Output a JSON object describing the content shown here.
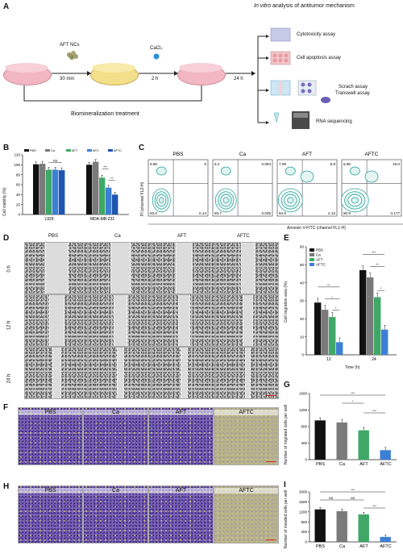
{
  "panel_labels": [
    "A",
    "B",
    "C",
    "D",
    "E",
    "F",
    "G",
    "H",
    "I"
  ],
  "panelA": {
    "title_italic": "In vitro",
    "title_rest": " analysis of antitumor mechanism",
    "step1_label": "AFT NCs",
    "step1_time": "30 min",
    "step2_label": "CaCl₂",
    "step2_time": "2 h",
    "step3_time": "24 h",
    "bottom_label": "Biomineralization treatment",
    "assays": [
      "Cytotoxicity assay",
      "Cell apoptosis assay",
      "Scrach assay",
      "Transwell assay",
      "RNA sequencing"
    ]
  },
  "groups": [
    "PBS",
    "Ca",
    "AFT",
    "AFTC"
  ],
  "colors": {
    "PBS": "#111111",
    "Ca": "#7a7a7a",
    "AFT": "#3fa866",
    "AFTC": "#3e7fd6",
    "flow": "#2aa39a"
  },
  "panelB": {
    "ylabel": "Cell viability (%)",
    "legend": [
      "PBS",
      "Ca",
      "AFT",
      "AFC",
      "AFTC"
    ],
    "sig": [
      "NS",
      "***",
      "**"
    ],
    "chart_data": {
      "type": "bar",
      "categories": [
        "L929",
        "MDA-MB-231"
      ],
      "ylim": [
        0,
        120
      ],
      "yticks": [
        0,
        20,
        40,
        60,
        80,
        100,
        120
      ],
      "series": [
        {
          "name": "PBS",
          "values": [
            101,
            100
          ]
        },
        {
          "name": "Ca",
          "values": [
            102,
            106
          ]
        },
        {
          "name": "AFT",
          "values": [
            90,
            74
          ]
        },
        {
          "name": "AFC",
          "values": [
            90,
            54
          ]
        },
        {
          "name": "AFTC",
          "values": [
            89,
            40
          ]
        }
      ]
    }
  },
  "panelC": {
    "xlabel": "Annexin V-FITC (channel FL1-H)",
    "ylabel": "PI (channel FL2-H)",
    "plots": [
      {
        "name": "PBS",
        "ul": "6.85",
        "ur": "0",
        "ll": "93.0",
        "lr": "0.14"
      },
      {
        "name": "Ca",
        "ul": "6.2",
        "ur": "0.094",
        "ll": "93.7",
        "lr": "0.035"
      },
      {
        "name": "AFT",
        "ul": "7.09",
        "ur": "5.9",
        "ll": "84.9",
        "lr": "2.13"
      },
      {
        "name": "AFTC",
        "ul": "5.95",
        "ur": "10.0",
        "ll": "80.9",
        "lr": "3.177"
      }
    ]
  },
  "panelD": {
    "columns": [
      "PBS",
      "Ca",
      "AFT",
      "AFTC"
    ],
    "rows": [
      "0 h",
      "12 h",
      "24 h"
    ]
  },
  "panelE": {
    "ylabel": "Cell migration area (%)",
    "xlabel": "Time (h)",
    "legend": [
      "PBS",
      "Ca",
      "AFT",
      "AFTC"
    ],
    "sig": [
      "**",
      "*",
      "*",
      "***",
      "**",
      "*"
    ],
    "chart_data": {
      "type": "bar",
      "categories": [
        "12",
        "24"
      ],
      "ylim": [
        0,
        60
      ],
      "yticks": [
        0,
        10,
        20,
        30,
        40,
        50,
        60
      ],
      "series": [
        {
          "name": "PBS",
          "values": [
            29,
            47
          ]
        },
        {
          "name": "Ca",
          "values": [
            25,
            43
          ]
        },
        {
          "name": "AFT",
          "values": [
            21,
            32
          ]
        },
        {
          "name": "AFTC",
          "values": [
            7,
            14
          ]
        }
      ]
    }
  },
  "panelF": {
    "columns": [
      "PBS",
      "Ca",
      "AFT",
      "AFTC"
    ]
  },
  "panelG": {
    "ylabel": "Number of migrated cells per well",
    "sig": [
      "***",
      "*",
      "***"
    ],
    "chart_data": {
      "type": "bar",
      "categories": [
        "PBS",
        "Ca",
        "AFT",
        "AFTC"
      ],
      "values": [
        950,
        900,
        710,
        230
      ],
      "ylim": [
        0,
        1600
      ],
      "yticks": [
        0,
        400,
        800,
        1200,
        1600
      ]
    }
  },
  "panelH": {
    "columns": [
      "PBS",
      "Ca",
      "AFT",
      "AFTC"
    ]
  },
  "panelI": {
    "ylabel": "Number of invaded cells per well",
    "sig": [
      "***",
      "NS",
      "NS",
      "***"
    ],
    "chart_data": {
      "type": "bar",
      "categories": [
        "PBS",
        "Ca",
        "AFT",
        "AFTC"
      ],
      "values": [
        1300,
        1230,
        1100,
        200
      ],
      "ylim": [
        0,
        2000
      ],
      "yticks": [
        0,
        400,
        800,
        1200,
        1600,
        2000
      ]
    }
  }
}
